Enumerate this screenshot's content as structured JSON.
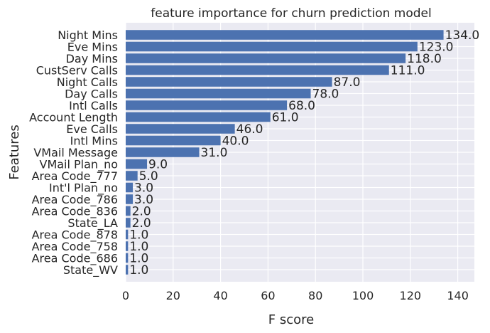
{
  "chart_data": {
    "type": "bar",
    "orientation": "horizontal",
    "title": "feature importance for churn prediction model",
    "xlabel": "F score",
    "ylabel": "Features",
    "categories": [
      "Night Mins",
      "Eve Mins",
      "Day Mins",
      "CustServ Calls",
      "Night Calls",
      "Day Calls",
      "Intl Calls",
      "Account Length",
      "Eve Calls",
      "Intl Mins",
      "VMail Message",
      "VMail Plan_no",
      "Area Code_777",
      "Int'l Plan_no",
      "Area Code_786",
      "Area Code_836",
      "State_LA",
      "Area Code_878",
      "Area Code_758",
      "Area Code_686",
      "State_WV"
    ],
    "values": [
      134,
      123,
      118,
      111,
      87,
      78,
      68,
      61,
      46,
      40,
      31,
      9,
      5,
      3,
      3,
      2,
      2,
      1,
      1,
      1,
      1
    ],
    "data_labels": [
      "134.0",
      "123.0",
      "118.0",
      "111.0",
      "87.0",
      "78.0",
      "68.0",
      "61.0",
      "46.0",
      "40.0",
      "31.0",
      "9.0",
      "5.0",
      "3.0",
      "3.0",
      "2.0",
      "2.0",
      "1.0",
      "1.0",
      "1.0",
      "1.0"
    ],
    "xlim": [
      0,
      147
    ],
    "xticks": [
      0,
      20,
      40,
      60,
      80,
      100,
      120,
      140
    ],
    "xtick_labels": [
      "0",
      "20",
      "40",
      "60",
      "80",
      "100",
      "120",
      "140"
    ],
    "grid": true,
    "colors": {
      "bar": "#4c72b0",
      "background": "#eaeaf2",
      "grid": "#ffffff"
    }
  }
}
